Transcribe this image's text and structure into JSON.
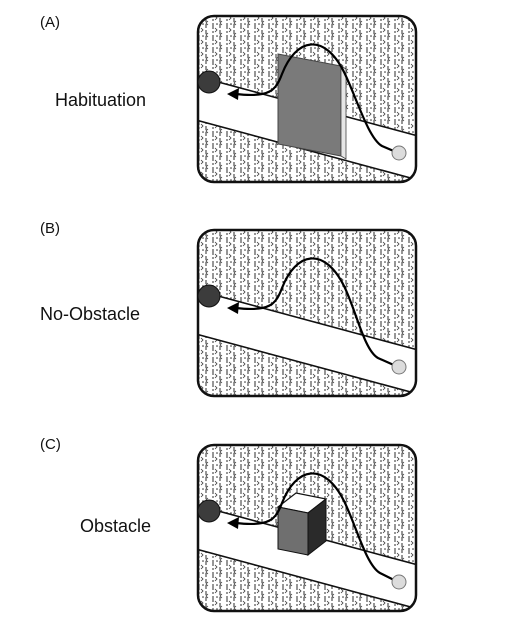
{
  "panels": [
    {
      "letter": "(A)",
      "label": "Habituation"
    },
    {
      "letter": "(B)",
      "label": "No-Obstacle"
    },
    {
      "letter": "(C)",
      "label": "Obstacle"
    }
  ],
  "colors": {
    "ball_goal": "#3c3c3c",
    "ball_start": "#dcdcdc",
    "wall_front": "#7a7a7a",
    "cube_front": "#6f6f6f",
    "cube_top": "#ffffff",
    "cube_side": "#2a2a2a",
    "path": "#000000",
    "texture": "#2c2c2c"
  },
  "icons": {
    "goal": "dark-ball-icon",
    "start": "light-ball-icon",
    "arrow": "arrowhead-icon"
  }
}
